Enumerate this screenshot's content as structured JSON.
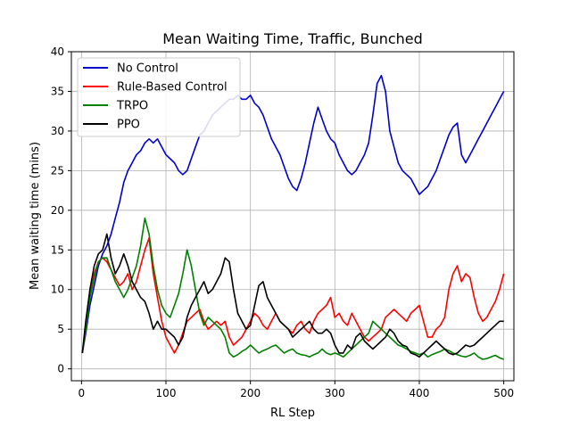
{
  "chart_data": {
    "type": "line",
    "title": "Mean Waiting Time, Traffic, Bunched",
    "xlabel": "RL Step",
    "ylabel": "Mean waiting time (mins)",
    "xlim": [
      -12,
      512
    ],
    "ylim": [
      -1.5,
      40
    ],
    "xticks": [
      0,
      100,
      200,
      300,
      400,
      500
    ],
    "yticks": [
      0,
      5,
      10,
      15,
      20,
      25,
      30,
      35,
      40
    ],
    "grid": true,
    "legend_position": "top-left",
    "series": [
      {
        "name": "No Control",
        "color": "#0000cc",
        "x": [
          1,
          5,
          10,
          15,
          20,
          25,
          30,
          35,
          40,
          45,
          50,
          55,
          60,
          65,
          70,
          75,
          80,
          85,
          90,
          95,
          100,
          105,
          110,
          115,
          120,
          125,
          130,
          135,
          140,
          145,
          150,
          155,
          160,
          165,
          170,
          175,
          180,
          185,
          190,
          195,
          200,
          205,
          210,
          215,
          220,
          225,
          230,
          235,
          240,
          245,
          250,
          255,
          260,
          265,
          270,
          275,
          280,
          285,
          290,
          295,
          300,
          305,
          310,
          315,
          320,
          325,
          330,
          335,
          340,
          345,
          350,
          355,
          360,
          365,
          370,
          375,
          380,
          385,
          390,
          395,
          400,
          405,
          410,
          415,
          420,
          425,
          430,
          435,
          440,
          445,
          450,
          455,
          460,
          465,
          470,
          475,
          480,
          485,
          490,
          495,
          500
        ],
        "y": [
          2,
          4.5,
          8,
          10.5,
          13,
          14.5,
          15.5,
          17,
          19,
          21,
          23.5,
          25,
          26,
          27,
          27.5,
          28.5,
          29,
          28.5,
          29,
          28,
          27,
          26.5,
          26,
          25,
          24.5,
          25,
          26.5,
          28,
          29.5,
          30,
          31,
          32,
          32.5,
          33,
          33.5,
          34,
          34,
          34.5,
          34,
          34,
          34.5,
          33.5,
          33,
          32,
          30.5,
          29,
          28,
          27,
          25.5,
          24,
          23,
          22.5,
          24,
          26,
          28.5,
          31,
          33,
          31.5,
          30,
          29,
          28.5,
          27,
          26,
          25,
          24.5,
          25,
          26,
          27,
          28.5,
          32,
          36,
          37,
          35,
          30,
          28,
          26,
          25,
          24.5,
          24,
          23,
          22,
          22.5,
          23,
          24,
          25,
          26.5,
          28,
          29.5,
          30.5,
          31,
          27,
          26,
          27,
          28,
          29,
          30,
          31,
          32,
          33,
          34,
          35
        ]
      },
      {
        "name": "Rule-Based Control",
        "color": "#ff0000",
        "x": [
          1,
          5,
          10,
          15,
          20,
          25,
          30,
          35,
          40,
          45,
          50,
          55,
          60,
          65,
          70,
          75,
          80,
          85,
          90,
          95,
          100,
          105,
          110,
          115,
          120,
          125,
          130,
          135,
          140,
          145,
          150,
          155,
          160,
          165,
          170,
          175,
          180,
          185,
          190,
          195,
          200,
          205,
          210,
          215,
          220,
          225,
          230,
          235,
          240,
          245,
          250,
          255,
          260,
          265,
          270,
          275,
          280,
          285,
          290,
          295,
          300,
          305,
          310,
          315,
          320,
          325,
          330,
          335,
          340,
          345,
          350,
          355,
          360,
          365,
          370,
          375,
          380,
          385,
          390,
          395,
          400,
          405,
          410,
          415,
          420,
          425,
          430,
          435,
          440,
          445,
          450,
          455,
          460,
          465,
          470,
          475,
          480,
          485,
          490,
          495,
          500
        ],
        "y": [
          2,
          5,
          9,
          12,
          13.5,
          14,
          13.5,
          12.5,
          11.5,
          10.5,
          11,
          12,
          10,
          11,
          13,
          15,
          16.5,
          12,
          9,
          6,
          4,
          3,
          2,
          3,
          4.5,
          6,
          6.5,
          7,
          7.5,
          6,
          5,
          5.5,
          6,
          5.5,
          6,
          4,
          3,
          3.5,
          4,
          5,
          6,
          7,
          6.5,
          5.5,
          5,
          6,
          7,
          6,
          5.5,
          5,
          4.5,
          5.5,
          6,
          5,
          4.5,
          6,
          7,
          7.5,
          8,
          9,
          6.5,
          7,
          6,
          5.5,
          7,
          6,
          5,
          4,
          3.5,
          4,
          4.5,
          5,
          6.5,
          7,
          7.5,
          7,
          6.5,
          6,
          7,
          7.5,
          8,
          6,
          4,
          4,
          5,
          5.5,
          6.5,
          10,
          12,
          13,
          11,
          12,
          11.5,
          9,
          7,
          6,
          6.5,
          7.5,
          8.5,
          10,
          12
        ]
      },
      {
        "name": "TRPO",
        "color": "#008000",
        "x": [
          1,
          5,
          10,
          15,
          20,
          25,
          30,
          35,
          40,
          45,
          50,
          55,
          60,
          65,
          70,
          75,
          80,
          85,
          90,
          95,
          100,
          105,
          110,
          115,
          120,
          125,
          130,
          135,
          140,
          145,
          150,
          155,
          160,
          165,
          170,
          175,
          180,
          185,
          190,
          195,
          200,
          205,
          210,
          215,
          220,
          225,
          230,
          235,
          240,
          245,
          250,
          255,
          260,
          265,
          270,
          275,
          280,
          285,
          290,
          295,
          300,
          305,
          310,
          315,
          320,
          325,
          330,
          335,
          340,
          345,
          350,
          355,
          360,
          365,
          370,
          375,
          380,
          385,
          390,
          395,
          400,
          405,
          410,
          415,
          420,
          425,
          430,
          435,
          440,
          445,
          450,
          455,
          460,
          465,
          470,
          475,
          480,
          485,
          490,
          495,
          500
        ],
        "y": [
          2,
          5,
          9,
          11.5,
          13.5,
          14,
          14,
          12.5,
          11,
          10,
          9,
          10,
          11.5,
          13,
          15.5,
          19,
          17,
          13,
          10,
          8,
          7,
          6.5,
          8,
          9.5,
          12,
          15,
          13,
          10,
          7,
          5.5,
          6.5,
          6,
          5.5,
          5,
          4,
          2,
          1.5,
          1.8,
          2.2,
          2.5,
          3,
          2.5,
          2,
          2.3,
          2.5,
          2.8,
          3,
          2.5,
          2,
          2.3,
          2.5,
          2,
          1.8,
          1.7,
          1.5,
          1.8,
          2,
          2.5,
          2,
          1.8,
          2,
          1.8,
          1.5,
          2,
          2.5,
          3,
          3.5,
          4,
          4.5,
          6,
          5.5,
          5,
          4.5,
          4,
          3.5,
          3,
          2.8,
          2.5,
          2.2,
          2,
          1.8,
          2,
          1.5,
          1.8,
          2,
          2.2,
          2.5,
          2.3,
          2,
          1.8,
          1.6,
          1.5,
          1.7,
          2,
          1.5,
          1.2,
          1.3,
          1.5,
          1.7,
          1.4,
          1.2
        ]
      },
      {
        "name": "PPO",
        "color": "#000000",
        "x": [
          1,
          5,
          10,
          15,
          20,
          25,
          30,
          35,
          40,
          45,
          50,
          55,
          60,
          65,
          70,
          75,
          80,
          85,
          90,
          95,
          100,
          105,
          110,
          115,
          120,
          125,
          130,
          135,
          140,
          145,
          150,
          155,
          160,
          165,
          170,
          175,
          180,
          185,
          190,
          195,
          200,
          205,
          210,
          215,
          220,
          225,
          230,
          235,
          240,
          245,
          250,
          255,
          260,
          265,
          270,
          275,
          280,
          285,
          290,
          295,
          300,
          305,
          310,
          315,
          320,
          325,
          330,
          335,
          340,
          345,
          350,
          355,
          360,
          365,
          370,
          375,
          380,
          385,
          390,
          395,
          400,
          405,
          410,
          415,
          420,
          425,
          430,
          435,
          440,
          445,
          450,
          455,
          460,
          465,
          470,
          475,
          480,
          485,
          490,
          495,
          500
        ],
        "y": [
          2,
          6,
          10,
          13,
          14.5,
          15,
          17,
          14,
          12,
          13,
          14.5,
          13,
          11,
          10,
          9,
          8.5,
          7,
          5,
          6,
          5,
          5,
          4.5,
          4,
          3,
          4,
          6.5,
          8,
          9,
          10,
          11,
          9.5,
          10,
          11,
          12,
          14,
          13.5,
          10,
          7,
          6,
          5,
          5.5,
          8,
          10.5,
          11,
          9,
          8,
          7,
          6,
          5.5,
          5,
          4,
          4.5,
          5,
          5.5,
          6,
          5,
          4.5,
          4.5,
          5,
          4.5,
          3,
          2,
          2,
          3,
          2.5,
          4,
          4.5,
          3.5,
          3,
          2.5,
          3,
          3.5,
          4,
          5,
          4.5,
          3.5,
          3,
          2.8,
          2,
          1.8,
          1.5,
          2,
          2.5,
          3,
          3.5,
          3,
          2.5,
          2,
          1.8,
          2,
          2.5,
          3,
          2.8,
          3,
          3.5,
          4,
          4.5,
          5,
          5.5,
          6,
          6
        ]
      }
    ]
  }
}
